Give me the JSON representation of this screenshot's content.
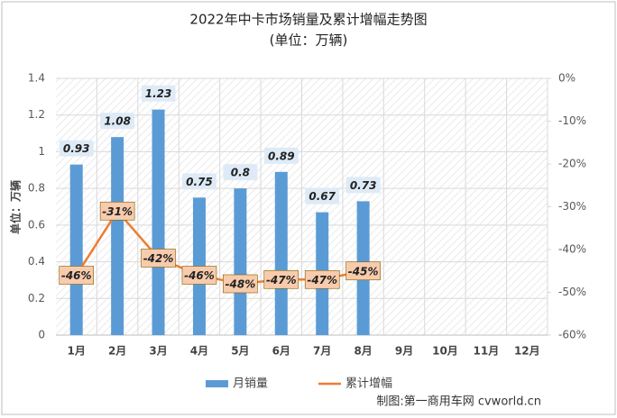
{
  "chart_data": {
    "type": "bar_line",
    "title": "2022年中卡市场销量及累计增幅走势图",
    "subtitle": "(单位：万辆)",
    "y_label": "单位：万辆",
    "categories": [
      "1月",
      "2月",
      "3月",
      "4月",
      "5月",
      "6月",
      "7月",
      "8月",
      "9月",
      "10月",
      "11月",
      "12月"
    ],
    "series": [
      {
        "name": "月销量",
        "color": "#5b9bd5",
        "type": "bar",
        "values": [
          0.93,
          1.08,
          1.23,
          0.75,
          0.8,
          0.89,
          0.67,
          0.73,
          null,
          null,
          null,
          null
        ]
      },
      {
        "name": "累计增幅",
        "color": "#ed7d31",
        "type": "line",
        "axis": "y2",
        "values": [
          -46,
          -31,
          -42,
          -46,
          -48,
          -47,
          -47,
          -45,
          null,
          null,
          null,
          null
        ],
        "value_labels": [
          "-46%",
          "-31%",
          "-42%",
          "-46%",
          "-48%",
          "-47%",
          "-47%",
          "-45%",
          null,
          null,
          null,
          null
        ]
      }
    ],
    "ylim": [
      0,
      1.4
    ],
    "yticks": [
      0,
      0.2,
      0.4,
      0.6,
      0.8,
      1,
      1.2,
      1.4
    ],
    "y2lim": [
      -60,
      0
    ],
    "y2ticks": [
      {
        "value": -60,
        "label": "-60%"
      },
      {
        "value": -50,
        "label": "-50%"
      },
      {
        "value": -40,
        "label": "-40%"
      },
      {
        "value": -30,
        "label": "-30%"
      },
      {
        "value": -20,
        "label": "-20%"
      },
      {
        "value": -10,
        "label": "-10%"
      },
      {
        "value": 0,
        "label": "0%"
      }
    ],
    "grid": true,
    "legend": "bottom",
    "footer": "制图:第一商用车网 cvworld.cn"
  }
}
